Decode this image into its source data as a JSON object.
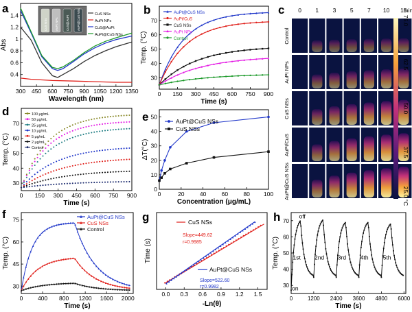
{
  "colors": {
    "axis": "#000000",
    "black": "#111111",
    "red": "#e0201b",
    "blue": "#1f36c9",
    "magenta": "#e41be4",
    "green": "#1d9a2b",
    "teal": "#1f7d83",
    "olive": "#8a8a2a",
    "navy": "#1b2a6e"
  },
  "panel_labels": [
    "a",
    "b",
    "c",
    "d",
    "e",
    "f",
    "g",
    "h"
  ],
  "chart_data": [
    {
      "id": "a",
      "type": "line",
      "xlabel": "Wavelength (nm)",
      "ylabel": "Abs",
      "xlim": [
        300,
        1350
      ],
      "ylim": [
        0.2,
        1.6
      ],
      "xticks": [
        300,
        450,
        600,
        750,
        900,
        1050,
        1200,
        1350
      ],
      "yticks": [
        0.4,
        0.6,
        0.8,
        1.0,
        1.2,
        1.4
      ],
      "inset_labels": [
        "CuS NSs",
        "AuPt NPs",
        "CuS@AuPt",
        "AuPt@CuS NSs"
      ],
      "series": [
        {
          "name": "CuS NSs",
          "color": "#333333",
          "x": [
            300,
            400,
            500,
            600,
            650,
            700,
            800,
            900,
            1000,
            1100,
            1200,
            1350
          ],
          "y": [
            1.2,
            0.98,
            0.6,
            0.38,
            0.35,
            0.4,
            0.5,
            0.62,
            0.72,
            0.8,
            0.87,
            0.95
          ]
        },
        {
          "name": "AuPt NPs",
          "color": "#e0201b",
          "x": [
            300,
            400,
            600,
            800,
            1000,
            1200,
            1350
          ],
          "y": [
            0.34,
            0.32,
            0.3,
            0.29,
            0.28,
            0.27,
            0.27
          ]
        },
        {
          "name": "CuS@AuPt",
          "color": "#1f36c9",
          "x": [
            300,
            400,
            500,
            600,
            650,
            700,
            800,
            900,
            1000,
            1100,
            1200,
            1350
          ],
          "y": [
            1.48,
            1.1,
            0.7,
            0.5,
            0.47,
            0.5,
            0.62,
            0.75,
            0.85,
            0.93,
            0.99,
            1.05
          ]
        },
        {
          "name": "AuPt@CuS NSs",
          "color": "#1d9a2b",
          "x": [
            300,
            400,
            500,
            600,
            650,
            700,
            800,
            900,
            1000,
            1100,
            1200,
            1350
          ],
          "y": [
            1.52,
            1.12,
            0.72,
            0.52,
            0.5,
            0.53,
            0.64,
            0.77,
            0.88,
            0.96,
            1.02,
            1.1
          ]
        }
      ]
    },
    {
      "id": "b",
      "type": "line",
      "xlabel": "Time (s)",
      "ylabel": "Temp. (°C)",
      "xlim": [
        0,
        900
      ],
      "ylim": [
        22,
        80
      ],
      "xticks": [
        0,
        150,
        300,
        450,
        600,
        750,
        900
      ],
      "yticks": [
        30,
        40,
        50,
        60,
        70
      ],
      "series": [
        {
          "name": "AuPt@CuS NSs",
          "color": "#1f36c9",
          "final": 75.5,
          "k": 0.0048
        },
        {
          "name": "AuPt/CuS",
          "color": "#e0201b",
          "final": 69,
          "k": 0.0045
        },
        {
          "name": "CuS NSs",
          "color": "#111111",
          "final": 50.5,
          "k": 0.0032
        },
        {
          "name": "AuPt NPs",
          "color": "#e41be4",
          "final": 43.5,
          "k": 0.0028
        },
        {
          "name": "Control",
          "color": "#1d9a2b",
          "final": 32,
          "k": 0.0025
        }
      ]
    },
    {
      "id": "c",
      "type": "heatmap",
      "time_labels": [
        "0",
        "1",
        "3",
        "5",
        "7",
        "10",
        "15"
      ],
      "time_unit": "min",
      "row_labels": [
        "Control",
        "AuPt NPs",
        "CuS NSs",
        "AuPt/CuS",
        "AuPt@CuS NSs"
      ],
      "colorbar_ticks": [
        "75.0",
        "62.5",
        "50.0",
        "37.5",
        "25.0 °C"
      ],
      "colorbar_range": [
        25.0,
        75.0
      ],
      "row_intensity": [
        0.15,
        0.45,
        0.7,
        0.85,
        1.0
      ]
    },
    {
      "id": "d",
      "type": "line",
      "xlabel": "Time (s)",
      "ylabel": "Temp. (°C)",
      "xlim": [
        0,
        900
      ],
      "ylim": [
        25,
        80
      ],
      "xticks": [
        0,
        150,
        300,
        450,
        600,
        750,
        900
      ],
      "yticks": [
        30,
        40,
        50,
        60,
        70
      ],
      "series": [
        {
          "name": "100 μg/mL",
          "color": "#8a8a2a",
          "final": 75.5,
          "k": 0.0045
        },
        {
          "name": "50 μg/mL",
          "color": "#e41be4",
          "final": 71,
          "k": 0.0045
        },
        {
          "name": "25 μg/mL",
          "color": "#1f7d83",
          "final": 66.5,
          "k": 0.0042
        },
        {
          "name": "10 μg/mL",
          "color": "#1f36c9",
          "final": 53.5,
          "k": 0.0035
        },
        {
          "name": "5 μg/mL",
          "color": "#e0201b",
          "final": 46,
          "k": 0.003
        },
        {
          "name": "2 μg/mL",
          "color": "#111111",
          "final": 38,
          "k": 0.0028
        },
        {
          "name": "Control",
          "color": "#1b2a6e",
          "final": 31,
          "k": 0.0025
        }
      ]
    },
    {
      "id": "e",
      "type": "line",
      "xlabel": "Concentration (μg/mL)",
      "ylabel": "ΔT(°C)",
      "xlim": [
        0,
        100
      ],
      "ylim": [
        0,
        55
      ],
      "xticks": [
        0,
        20,
        40,
        60,
        80,
        100
      ],
      "yticks": [
        0,
        10,
        20,
        30,
        40,
        50
      ],
      "series": [
        {
          "name": "AuPt@CuS NSs",
          "color": "#1f36c9",
          "x": [
            0,
            2,
            5,
            10,
            25,
            50,
            100
          ],
          "y": [
            6,
            13,
            20,
            29,
            40,
            46,
            50
          ]
        },
        {
          "name": "CuS NSs",
          "color": "#111111",
          "x": [
            0,
            2,
            5,
            10,
            25,
            50,
            100
          ],
          "y": [
            6,
            8,
            11,
            14,
            18,
            22,
            26
          ]
        }
      ]
    },
    {
      "id": "f",
      "type": "line",
      "xlabel": "Time (s)",
      "ylabel": "Temp. (°C)",
      "xlim": [
        0,
        2100
      ],
      "ylim": [
        25,
        80
      ],
      "xticks": [
        0,
        400,
        800,
        1200,
        1600,
        2000
      ],
      "yticks": [
        30,
        45,
        60,
        75
      ],
      "off_time": 1000,
      "series": [
        {
          "name": "AuPt@CuS NSs",
          "color": "#1f36c9",
          "peak": 73,
          "kr": 0.0048
        },
        {
          "name": "CuS NSs",
          "color": "#e0201b",
          "peak": 49,
          "kr": 0.0032
        },
        {
          "name": "Control",
          "color": "#111111",
          "peak": 32,
          "kr": 0.0025
        }
      ]
    },
    {
      "id": "g",
      "type": "scatter",
      "xlabel": "-Ln(θ)",
      "ylabel": "Time (s)",
      "xlim": [
        -0.15,
        1.65
      ],
      "ylim": [
        -60,
        880
      ],
      "xticks": [
        0.0,
        0.3,
        0.6,
        0.9,
        1.2,
        1.5
      ],
      "xtick_labels": [
        "0.0",
        "0.3",
        "0.6",
        "0.9",
        "1.2",
        "1.5"
      ],
      "series": [
        {
          "name": "CuS NSs",
          "color": "#e0201b",
          "slope": 449.62,
          "intercept": 20,
          "xmax": 1.6,
          "slope_label": "Slope=449.62",
          "r_label": "r=0.9985"
        },
        {
          "name": "AuPt@CuS NSs",
          "color": "#1f36c9",
          "slope": 522.6,
          "intercept": 10,
          "xmax": 1.45,
          "slope_label": "Slope=522.60",
          "r_label": "r=0.9982"
        }
      ]
    },
    {
      "id": "h",
      "type": "line",
      "xlabel": "Time (s)",
      "ylabel": "Temp. (°C)",
      "xlim": [
        0,
        6100
      ],
      "ylim": [
        25,
        75
      ],
      "xticks": [
        0,
        1200,
        2400,
        3600,
        4800,
        6000
      ],
      "yticks": [
        30,
        40,
        50,
        60,
        70
      ],
      "cycle_labels": [
        "1st",
        "2nd",
        "3rd",
        "4th",
        "5th"
      ],
      "annotations": [
        "off",
        "on"
      ],
      "cycle_peaks": [
        70,
        70.5,
        69,
        69,
        68
      ],
      "color": "#111111"
    }
  ]
}
